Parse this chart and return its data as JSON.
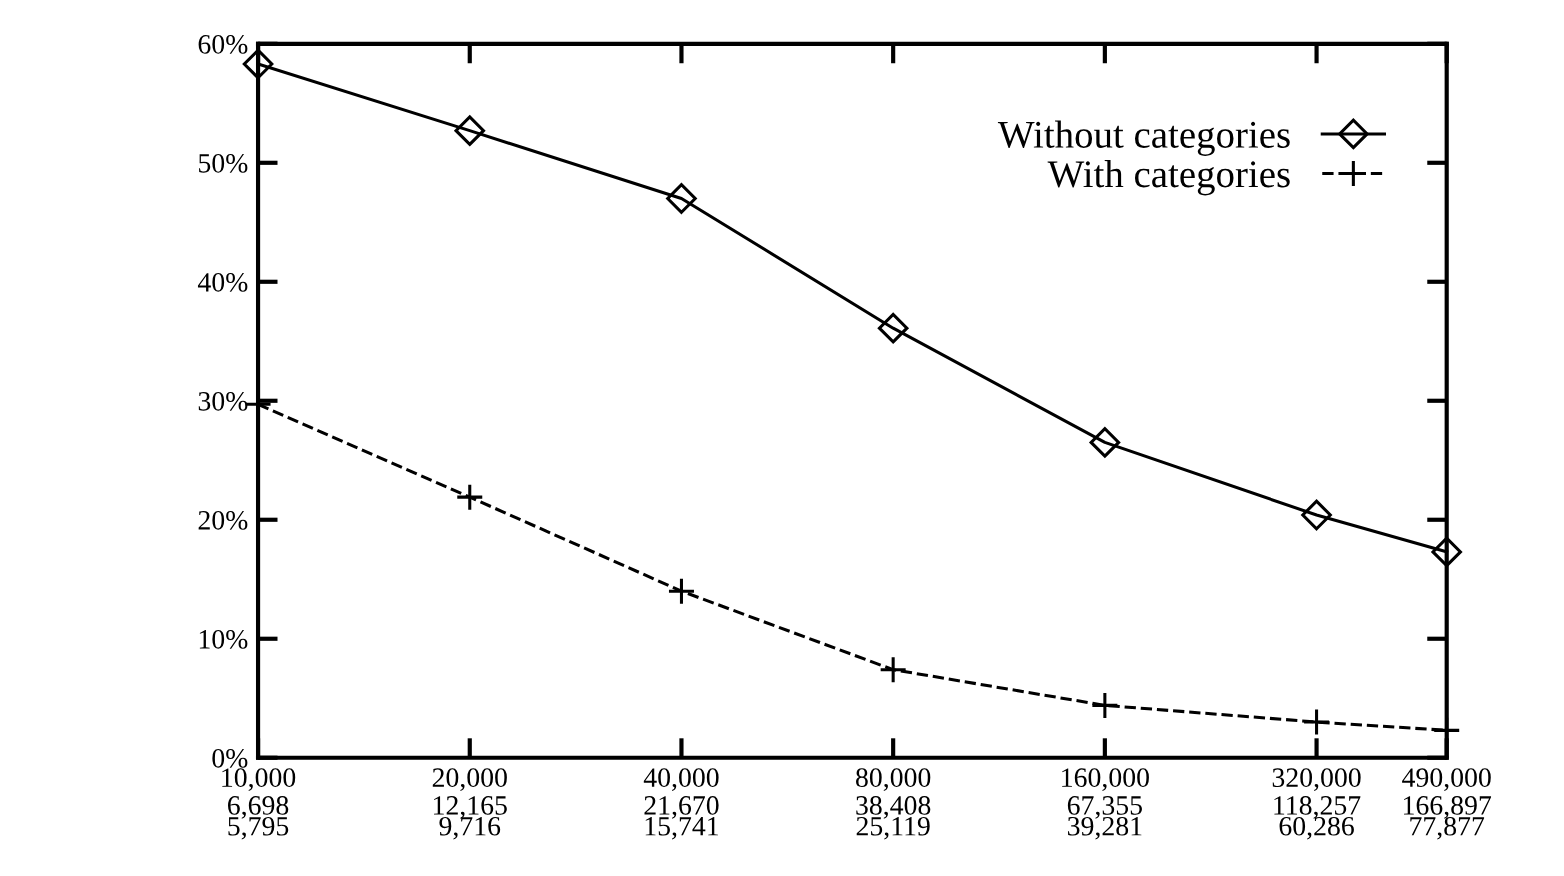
{
  "chart_data": {
    "type": "line",
    "x": [
      10000,
      20000,
      40000,
      80000,
      160000,
      320000,
      490000
    ],
    "series": [
      {
        "name": "Without categories",
        "color": "#000000",
        "marker": "diamond",
        "line_style": "solid",
        "values": [
          58.3,
          52.7,
          47.0,
          36.1,
          26.5,
          20.4,
          17.3
        ]
      },
      {
        "name": "With categories",
        "color": "#000000",
        "marker": "cross",
        "line_style": "dashed",
        "values": [
          29.7,
          21.9,
          14.0,
          7.4,
          4.4,
          3.0,
          2.3
        ]
      }
    ],
    "log": "x",
    "xlim": [
      10000,
      490000
    ],
    "xticks": [
      {
        "value": 10000,
        "label": "10,000"
      },
      {
        "value": 20000,
        "label": "20,000"
      },
      {
        "value": 40000,
        "label": "40,000"
      },
      {
        "value": 80000,
        "label": "80,000"
      },
      {
        "value": 160000,
        "label": "160,000"
      },
      {
        "value": 320000,
        "label": "320,000"
      },
      {
        "value": 490000,
        "label": "490,000"
      }
    ],
    "annotations": [
      "6,698",
      "12,165",
      "21,670",
      "38,408",
      "67,355",
      "118,257",
      "166,897",
      "5,795",
      "9,716",
      "15,741",
      "25,119",
      "39,281",
      "60,286",
      "77,877"
    ],
    "ylim": [
      0,
      60
    ],
    "yticks": [
      {
        "value": 0,
        "label": "0%"
      },
      {
        "value": 10,
        "label": "10%"
      },
      {
        "value": 20,
        "label": "20%"
      },
      {
        "value": 30,
        "label": "30%"
      },
      {
        "value": 40,
        "label": "40%"
      },
      {
        "value": 50,
        "label": "50%"
      },
      {
        "value": 60,
        "label": "60%"
      }
    ],
    "grid": false,
    "legend": "top right"
  }
}
